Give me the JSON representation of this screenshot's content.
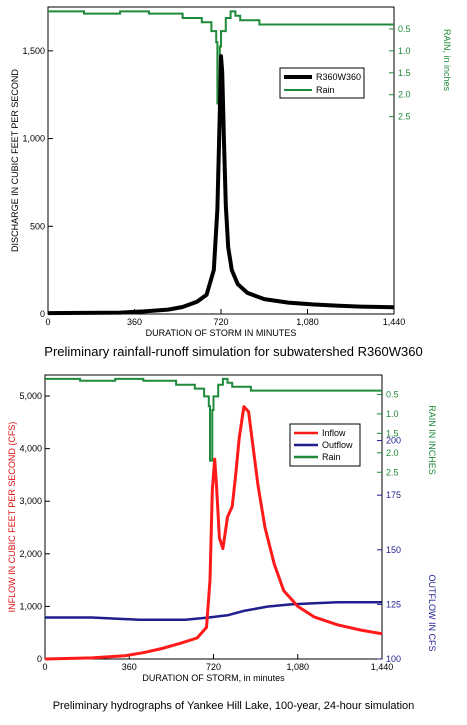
{
  "charts": [
    {
      "caption": "Preliminary rainfall-runoff simulation for subwatershed R360W360",
      "chart_data": {
        "type": "line",
        "xlabel": "DURATION OF STORM IN MINUTES",
        "ylabel": "DISCHARGE IN CUBIC FEET PER SECOND",
        "y2label": "RAIN, in inches",
        "xlim": [
          0,
          1440
        ],
        "ylim": [
          0,
          1750
        ],
        "y2lim": [
          0,
          7
        ],
        "y2_inverted": true,
        "xticks": [
          0,
          360,
          720,
          1080,
          1440
        ],
        "xtick_labels": [
          "0",
          "360",
          "720",
          "1,080",
          "1,440"
        ],
        "yticks": [
          0,
          500,
          1000,
          1500
        ],
        "ytick_labels": [
          "0",
          "500",
          "1,000",
          "1,500"
        ],
        "y2ticks": [
          0.5,
          1.0,
          1.5,
          2.0,
          2.5
        ],
        "y2tick_labels": [
          "0.5",
          "1.0",
          "1.5",
          "2.0",
          "2.5"
        ],
        "legend_position": "upper-right",
        "grid": false,
        "series": [
          {
            "name": "R360W360",
            "color": "#000000",
            "axis": "left",
            "x": [
              0,
              300,
              400,
              500,
              560,
              620,
              660,
              690,
              705,
              715,
              720,
              725,
              732,
              740,
              750,
              765,
              790,
              830,
              900,
              1000,
              1100,
              1200,
              1300,
              1440
            ],
            "y": [
              5,
              8,
              15,
              25,
              40,
              70,
              110,
              250,
              600,
              1150,
              1470,
              1380,
              1000,
              620,
              380,
              250,
              170,
              120,
              85,
              65,
              55,
              48,
              42,
              38
            ]
          },
          {
            "name": "Rain",
            "color": "#1f8a3a",
            "axis": "right",
            "step": true,
            "x": [
              0,
              150,
              300,
              420,
              560,
              640,
              680,
              700,
              705,
              715,
              720,
              740,
              760,
              780,
              800,
              880,
              1000,
              1440
            ],
            "y": [
              0.1,
              0.15,
              0.1,
              0.15,
              0.25,
              0.35,
              0.55,
              0.8,
              2.2,
              0.9,
              0.55,
              0.25,
              0.1,
              0.2,
              0.3,
              0.4,
              0.4,
              0.4
            ]
          }
        ]
      }
    },
    {
      "caption": "Preliminary hydrographs of Yankee Hill Lake, 100-year, 24-hour simulation",
      "chart_data": {
        "type": "line",
        "xlabel": "DURATION OF STORM, in minutes",
        "ylabel": "INFLOW IN CUBIC FEET PER SECOND (CFS)",
        "y2label": "RAIN IN INCHES",
        "y3label": "OUTFLOW IN CFS",
        "xlim": [
          0,
          1440
        ],
        "ylim": [
          0,
          5400
        ],
        "xticks": [
          0,
          360,
          720,
          1080,
          1440
        ],
        "xtick_labels": [
          "0",
          "360",
          "720",
          "1,080",
          "1,440"
        ],
        "yticks": [
          0,
          1000,
          2000,
          3000,
          4000,
          5000
        ],
        "ytick_labels": [
          "0",
          "1,000",
          "2,000",
          "3,000",
          "4,000",
          "5,000"
        ],
        "y2ticks": [
          0.5,
          1.0,
          1.5,
          2.0,
          2.5
        ],
        "y2tick_labels": [
          "0.5",
          "1.0",
          "1.5",
          "2.0",
          "2.5"
        ],
        "y3ticks": [
          100,
          125,
          150,
          175,
          200
        ],
        "y3tick_labels": [
          "100",
          "125",
          "150",
          "175",
          "200"
        ],
        "legend_position": "upper-right",
        "grid": false,
        "series": [
          {
            "name": "Inflow",
            "color": "#ff1a1a",
            "axis": "left",
            "x": [
              0,
              200,
              340,
              420,
              500,
              580,
              650,
              690,
              705,
              715,
              725,
              733,
              745,
              760,
              780,
              800,
              815,
              830,
              850,
              870,
              890,
              910,
              940,
              980,
              1020,
              1080,
              1150,
              1250,
              1350,
              1440
            ],
            "y": [
              0,
              20,
              60,
              120,
              200,
              300,
              400,
              600,
              1500,
              3200,
              3800,
              3300,
              2300,
              2100,
              2700,
              2900,
              3500,
              4200,
              4800,
              4700,
              4000,
              3300,
              2500,
              1800,
              1300,
              1000,
              800,
              650,
              550,
              480
            ]
          },
          {
            "name": "Outflow",
            "color": "#1f1f8f",
            "axis": "right2",
            "y3lim": [
              100,
              230
            ],
            "x": [
              0,
              200,
              400,
              600,
              700,
              780,
              850,
              950,
              1050,
              1150,
              1250,
              1350,
              1440
            ],
            "y": [
              119,
              119,
              118,
              118,
              119,
              120,
              122,
              124,
              125,
              125.5,
              126,
              126,
              126
            ]
          },
          {
            "name": "Rain",
            "color": "#1f8a3a",
            "axis": "right",
            "step": true,
            "x": [
              0,
              150,
              300,
              420,
              560,
              640,
              680,
              700,
              705,
              715,
              720,
              740,
              760,
              780,
              800,
              880,
              1000,
              1440
            ],
            "y": [
              0.1,
              0.15,
              0.1,
              0.15,
              0.25,
              0.35,
              0.55,
              0.8,
              2.2,
              0.9,
              0.55,
              0.25,
              0.1,
              0.2,
              0.3,
              0.4,
              0.4,
              0.4
            ]
          }
        ]
      }
    }
  ]
}
